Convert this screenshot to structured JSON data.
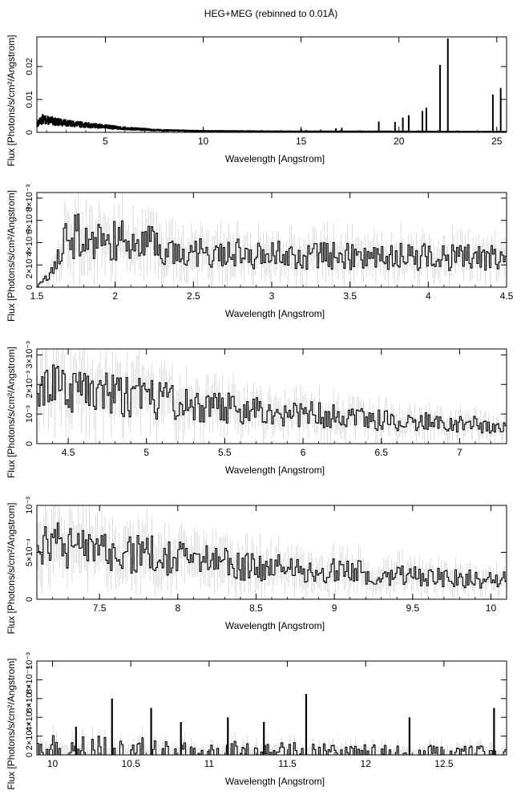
{
  "title": "HEG+MEG (rebinned to 0.01Å)",
  "chart_data": [
    {
      "type": "line",
      "panel": "full-band",
      "xlabel": "Wavelength [Angstrom]",
      "ylabel": "Flux [Photons/s/cm²/Angstrom]",
      "xlim": [
        1.5,
        25.5
      ],
      "ylim": [
        0,
        0.029
      ],
      "x_ticks": [
        5,
        10,
        15,
        20,
        25
      ],
      "x_tick_labels": [
        "5",
        "10",
        "15",
        "20",
        "25"
      ],
      "y_ticks": [
        0,
        0.01,
        0.02
      ],
      "y_tick_labels": [
        "0",
        "0.01",
        "0.02"
      ],
      "continuum": [
        [
          1.5,
          0.0025
        ],
        [
          1.8,
          0.004
        ],
        [
          2.5,
          0.0032
        ],
        [
          3.5,
          0.0025
        ],
        [
          4.5,
          0.002
        ],
        [
          6,
          0.0012
        ],
        [
          8,
          0.0006
        ],
        [
          10,
          0.0004
        ],
        [
          14,
          0.0003
        ],
        [
          25.5,
          0.0002
        ]
      ],
      "lines": [
        {
          "x": 15.0,
          "y": 0.0011
        },
        {
          "x": 15.26,
          "y": 0.0007
        },
        {
          "x": 16.0,
          "y": 0.0008
        },
        {
          "x": 16.78,
          "y": 0.0012
        },
        {
          "x": 17.08,
          "y": 0.0014
        },
        {
          "x": 18.97,
          "y": 0.0033
        },
        {
          "x": 19.8,
          "y": 0.0032
        },
        {
          "x": 20.2,
          "y": 0.0045
        },
        {
          "x": 20.5,
          "y": 0.0052
        },
        {
          "x": 21.2,
          "y": 0.0065
        },
        {
          "x": 21.4,
          "y": 0.0075
        },
        {
          "x": 22.1,
          "y": 0.0205
        },
        {
          "x": 22.5,
          "y": 0.0285
        },
        {
          "x": 24.8,
          "y": 0.0115
        },
        {
          "x": 25.2,
          "y": 0.0135
        }
      ],
      "grid": false
    },
    {
      "type": "line",
      "panel": "1.5-4.5",
      "xlabel": "Wavelength [Angstrom]",
      "ylabel": "Flux [Photons/s/cm²/Angstrom]",
      "xlim": [
        1.5,
        4.5
      ],
      "ylim": [
        0,
        0.0085
      ],
      "y_multiplier": "×10⁻³",
      "x_ticks": [
        1.5,
        2,
        2.5,
        3,
        3.5,
        4,
        4.5
      ],
      "x_tick_labels": [
        "1.5",
        "2",
        "2.5",
        "3",
        "3.5",
        "4",
        "4.5"
      ],
      "y_ticks": [
        0,
        0.002,
        0.004,
        0.006,
        0.008
      ],
      "y_tick_labels": [
        "0",
        "2×10⁻³",
        "4×10⁻³",
        "6×10⁻³",
        "8×10⁻³"
      ],
      "trend": [
        [
          1.5,
          0.0
        ],
        [
          1.6,
          0.0015
        ],
        [
          1.7,
          0.0045
        ],
        [
          1.8,
          0.0046
        ],
        [
          2.0,
          0.0042
        ],
        [
          2.5,
          0.0033
        ],
        [
          3.0,
          0.0029
        ],
        [
          3.5,
          0.0028
        ],
        [
          4.0,
          0.0027
        ],
        [
          4.5,
          0.0026
        ]
      ],
      "grid": false
    },
    {
      "type": "line",
      "panel": "4.3-7.3",
      "xlabel": "Wavelength [Angstrom]",
      "ylabel": "Flux [Photons/s/cm²/Angstrom]",
      "xlim": [
        4.3,
        7.3
      ],
      "ylim": [
        0,
        0.0032
      ],
      "y_multiplier": "×10⁻³",
      "x_ticks": [
        4.5,
        5,
        5.5,
        6,
        6.5,
        7
      ],
      "x_tick_labels": [
        "4.5",
        "5",
        "5.5",
        "6",
        "6.5",
        "7"
      ],
      "y_ticks": [
        0,
        0.001,
        0.002,
        0.003
      ],
      "y_tick_labels": [
        "0",
        "10⁻³",
        "2×10⁻³",
        "3×10⁻³"
      ],
      "trend": [
        [
          4.3,
          0.0019
        ],
        [
          4.6,
          0.0019
        ],
        [
          5.0,
          0.0015
        ],
        [
          5.5,
          0.0012
        ],
        [
          6.0,
          0.001
        ],
        [
          6.5,
          0.0008
        ],
        [
          7.0,
          0.0007
        ],
        [
          7.3,
          0.0006
        ]
      ],
      "grid": false
    },
    {
      "type": "line",
      "panel": "7.1-10.1",
      "xlabel": "Wavelength [Angstrom]",
      "ylabel": "Flux [Photons/s/cm²/Angstrom]",
      "xlim": [
        7.1,
        10.1
      ],
      "ylim": [
        0,
        0.001
      ],
      "y_multiplier": "×10⁻⁴",
      "x_ticks": [
        7.5,
        8,
        8.5,
        9,
        9.5,
        10
      ],
      "x_tick_labels": [
        "7.5",
        "8",
        "8.5",
        "9",
        "9.5",
        "10"
      ],
      "y_ticks": [
        0,
        0.0005,
        0.001
      ],
      "y_tick_labels": [
        "0",
        "5×10⁻⁴",
        "10⁻³"
      ],
      "trend": [
        [
          7.1,
          0.0006
        ],
        [
          7.5,
          0.0005
        ],
        [
          8.0,
          0.00045
        ],
        [
          8.5,
          0.00035
        ],
        [
          9.0,
          0.0003
        ],
        [
          9.5,
          0.00025
        ],
        [
          10.1,
          0.0002
        ]
      ],
      "grid": false
    },
    {
      "type": "line",
      "panel": "9.9-12.9",
      "xlabel": "Wavelength [Angstrom]",
      "ylabel": "Flux [Photons/s/cm²/Angstrom]",
      "xlim": [
        9.9,
        12.9
      ],
      "ylim": [
        0,
        0.001
      ],
      "y_multiplier": "×10⁻⁴",
      "x_ticks": [
        10,
        10.5,
        11,
        11.5,
        12,
        12.5
      ],
      "x_tick_labels": [
        "10",
        "10.5",
        "11",
        "11.5",
        "12",
        "12.5"
      ],
      "y_ticks": [
        0,
        0.0002,
        0.0004,
        0.0006,
        0.0008,
        0.001
      ],
      "y_tick_labels": [
        "0",
        "2×10⁻⁴",
        "4×10⁻⁴",
        "6×10⁻⁴",
        "8×10⁻⁴",
        "10⁻³"
      ],
      "trend": [
        [
          9.9,
          0.00012
        ],
        [
          10.5,
          0.0001
        ],
        [
          11.0,
          8e-05
        ],
        [
          11.5,
          7e-05
        ],
        [
          12.0,
          6e-05
        ],
        [
          12.9,
          5e-05
        ]
      ],
      "spikes": [
        {
          "x": 10.15,
          "y": 0.0003
        },
        {
          "x": 10.38,
          "y": 0.0006
        },
        {
          "x": 10.63,
          "y": 0.0005
        },
        {
          "x": 10.82,
          "y": 0.00035
        },
        {
          "x": 11.12,
          "y": 0.0004
        },
        {
          "x": 11.35,
          "y": 0.00035
        },
        {
          "x": 11.62,
          "y": 0.00065
        },
        {
          "x": 12.28,
          "y": 0.0004
        },
        {
          "x": 12.82,
          "y": 0.0005
        }
      ],
      "grid": false
    }
  ]
}
